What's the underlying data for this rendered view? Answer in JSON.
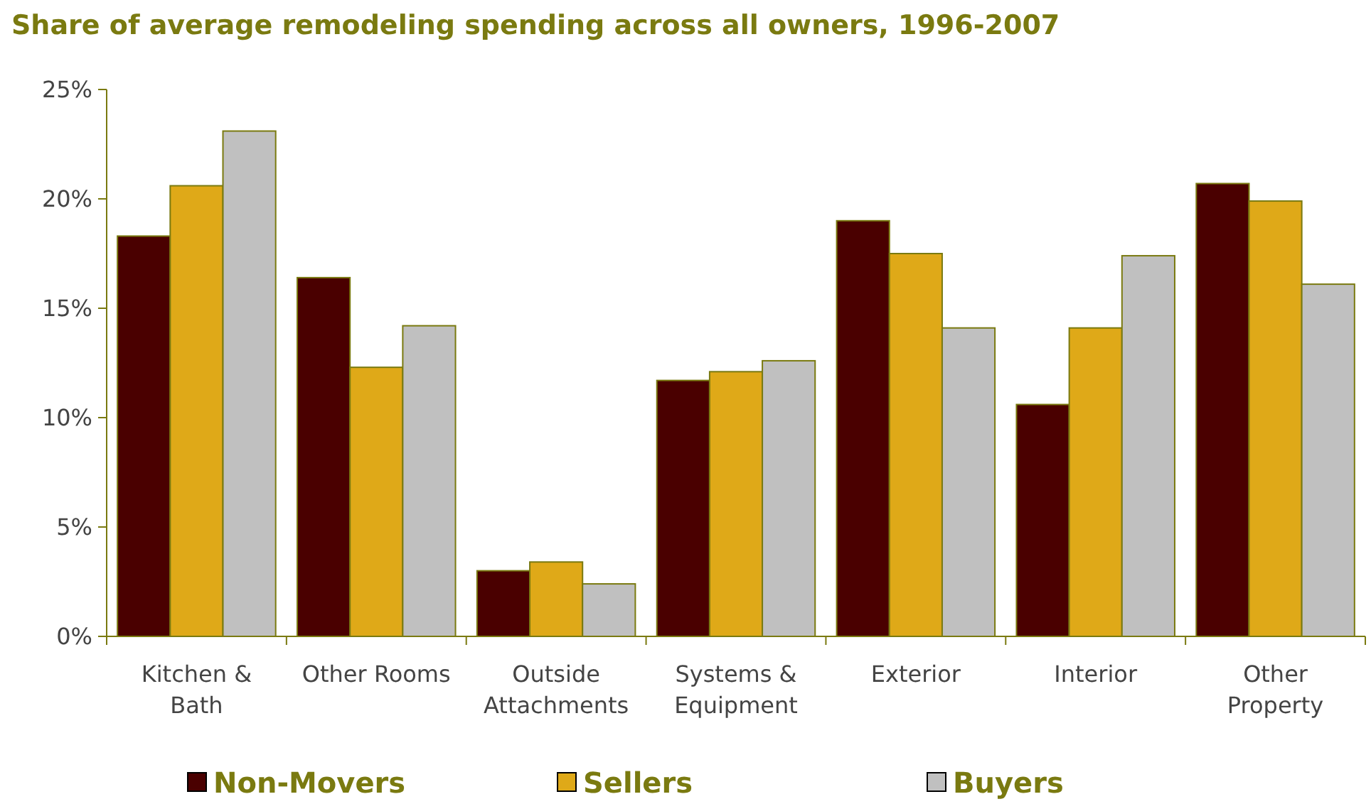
{
  "chart_data": {
    "type": "bar",
    "title": "Share of average remodeling spending across all owners, 1996-2007",
    "categories": [
      "Kitchen & Bath",
      "Other Rooms",
      "Outside Attachments",
      "Systems & Equipment",
      "Exterior",
      "Interior",
      "Other Property"
    ],
    "series": [
      {
        "name": "Non-Movers",
        "color": "#4a0000",
        "values": [
          18.3,
          16.4,
          3.0,
          11.7,
          19.0,
          10.6,
          20.7
        ]
      },
      {
        "name": "Sellers",
        "color": "#dfa918",
        "values": [
          20.6,
          12.3,
          3.4,
          12.1,
          17.5,
          14.1,
          19.9
        ]
      },
      {
        "name": "Buyers",
        "color": "#c0c0c0",
        "values": [
          23.1,
          14.2,
          2.4,
          12.6,
          14.1,
          17.4,
          16.1
        ]
      }
    ],
    "ylim": [
      0,
      25
    ],
    "yticks": [
      {
        "value": 0,
        "label": "0%"
      },
      {
        "value": 5,
        "label": "5%"
      },
      {
        "value": 10,
        "label": "10%"
      },
      {
        "value": 15,
        "label": "15%"
      },
      {
        "value": 20,
        "label": "20%"
      },
      {
        "value": 25,
        "label": "25%"
      }
    ],
    "grid": false,
    "legend": "bottom"
  }
}
